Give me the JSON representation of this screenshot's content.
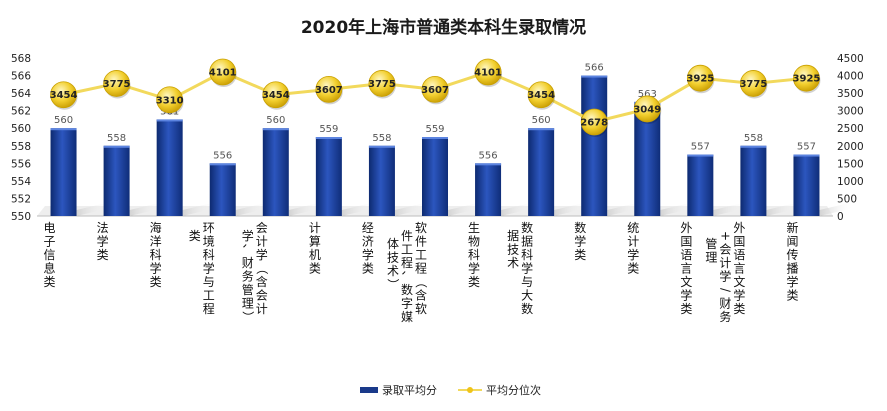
{
  "chart_data": {
    "type": "bar",
    "title": "2020年上海市普通类本科生录取情况",
    "categories": [
      "电子信息类",
      "法学类",
      "海洋科学类",
      "环境科学与工程类",
      "会计学（含会计学、财务管理）",
      "计算机类",
      "经济学类",
      "软件工程（含软件工程、数字媒体技术）",
      "生物科学类",
      "数据科学与大数据技术",
      "数学类",
      "统计学类",
      "外国语言文学类",
      "外国语言文学类+会计学/财务管理",
      "新闻传播学类"
    ],
    "series": [
      {
        "name": "录取平均分",
        "type": "bar",
        "axis": "left",
        "values": [
          560,
          558,
          561,
          556,
          560,
          559,
          558,
          559,
          556,
          560,
          566,
          563,
          557,
          558,
          557
        ]
      },
      {
        "name": "平均分位次",
        "type": "line",
        "axis": "right",
        "values": [
          3454,
          3775,
          3310,
          4101,
          3454,
          3607,
          3775,
          3607,
          4101,
          3454,
          2678,
          3049,
          3925,
          3775,
          3925
        ]
      }
    ],
    "left_axis": {
      "min": 550,
      "max": 568,
      "step": 2
    },
    "right_axis": {
      "min": 0,
      "max": 4500,
      "step": 500
    },
    "legend_position": "bottom",
    "grid": false,
    "colors": {
      "bar": "#1a3a8a",
      "bar_light": "#2f5bc4",
      "line": "#f2d95c",
      "marker": "#f0c419",
      "marker_edge": "#c9a000"
    }
  }
}
